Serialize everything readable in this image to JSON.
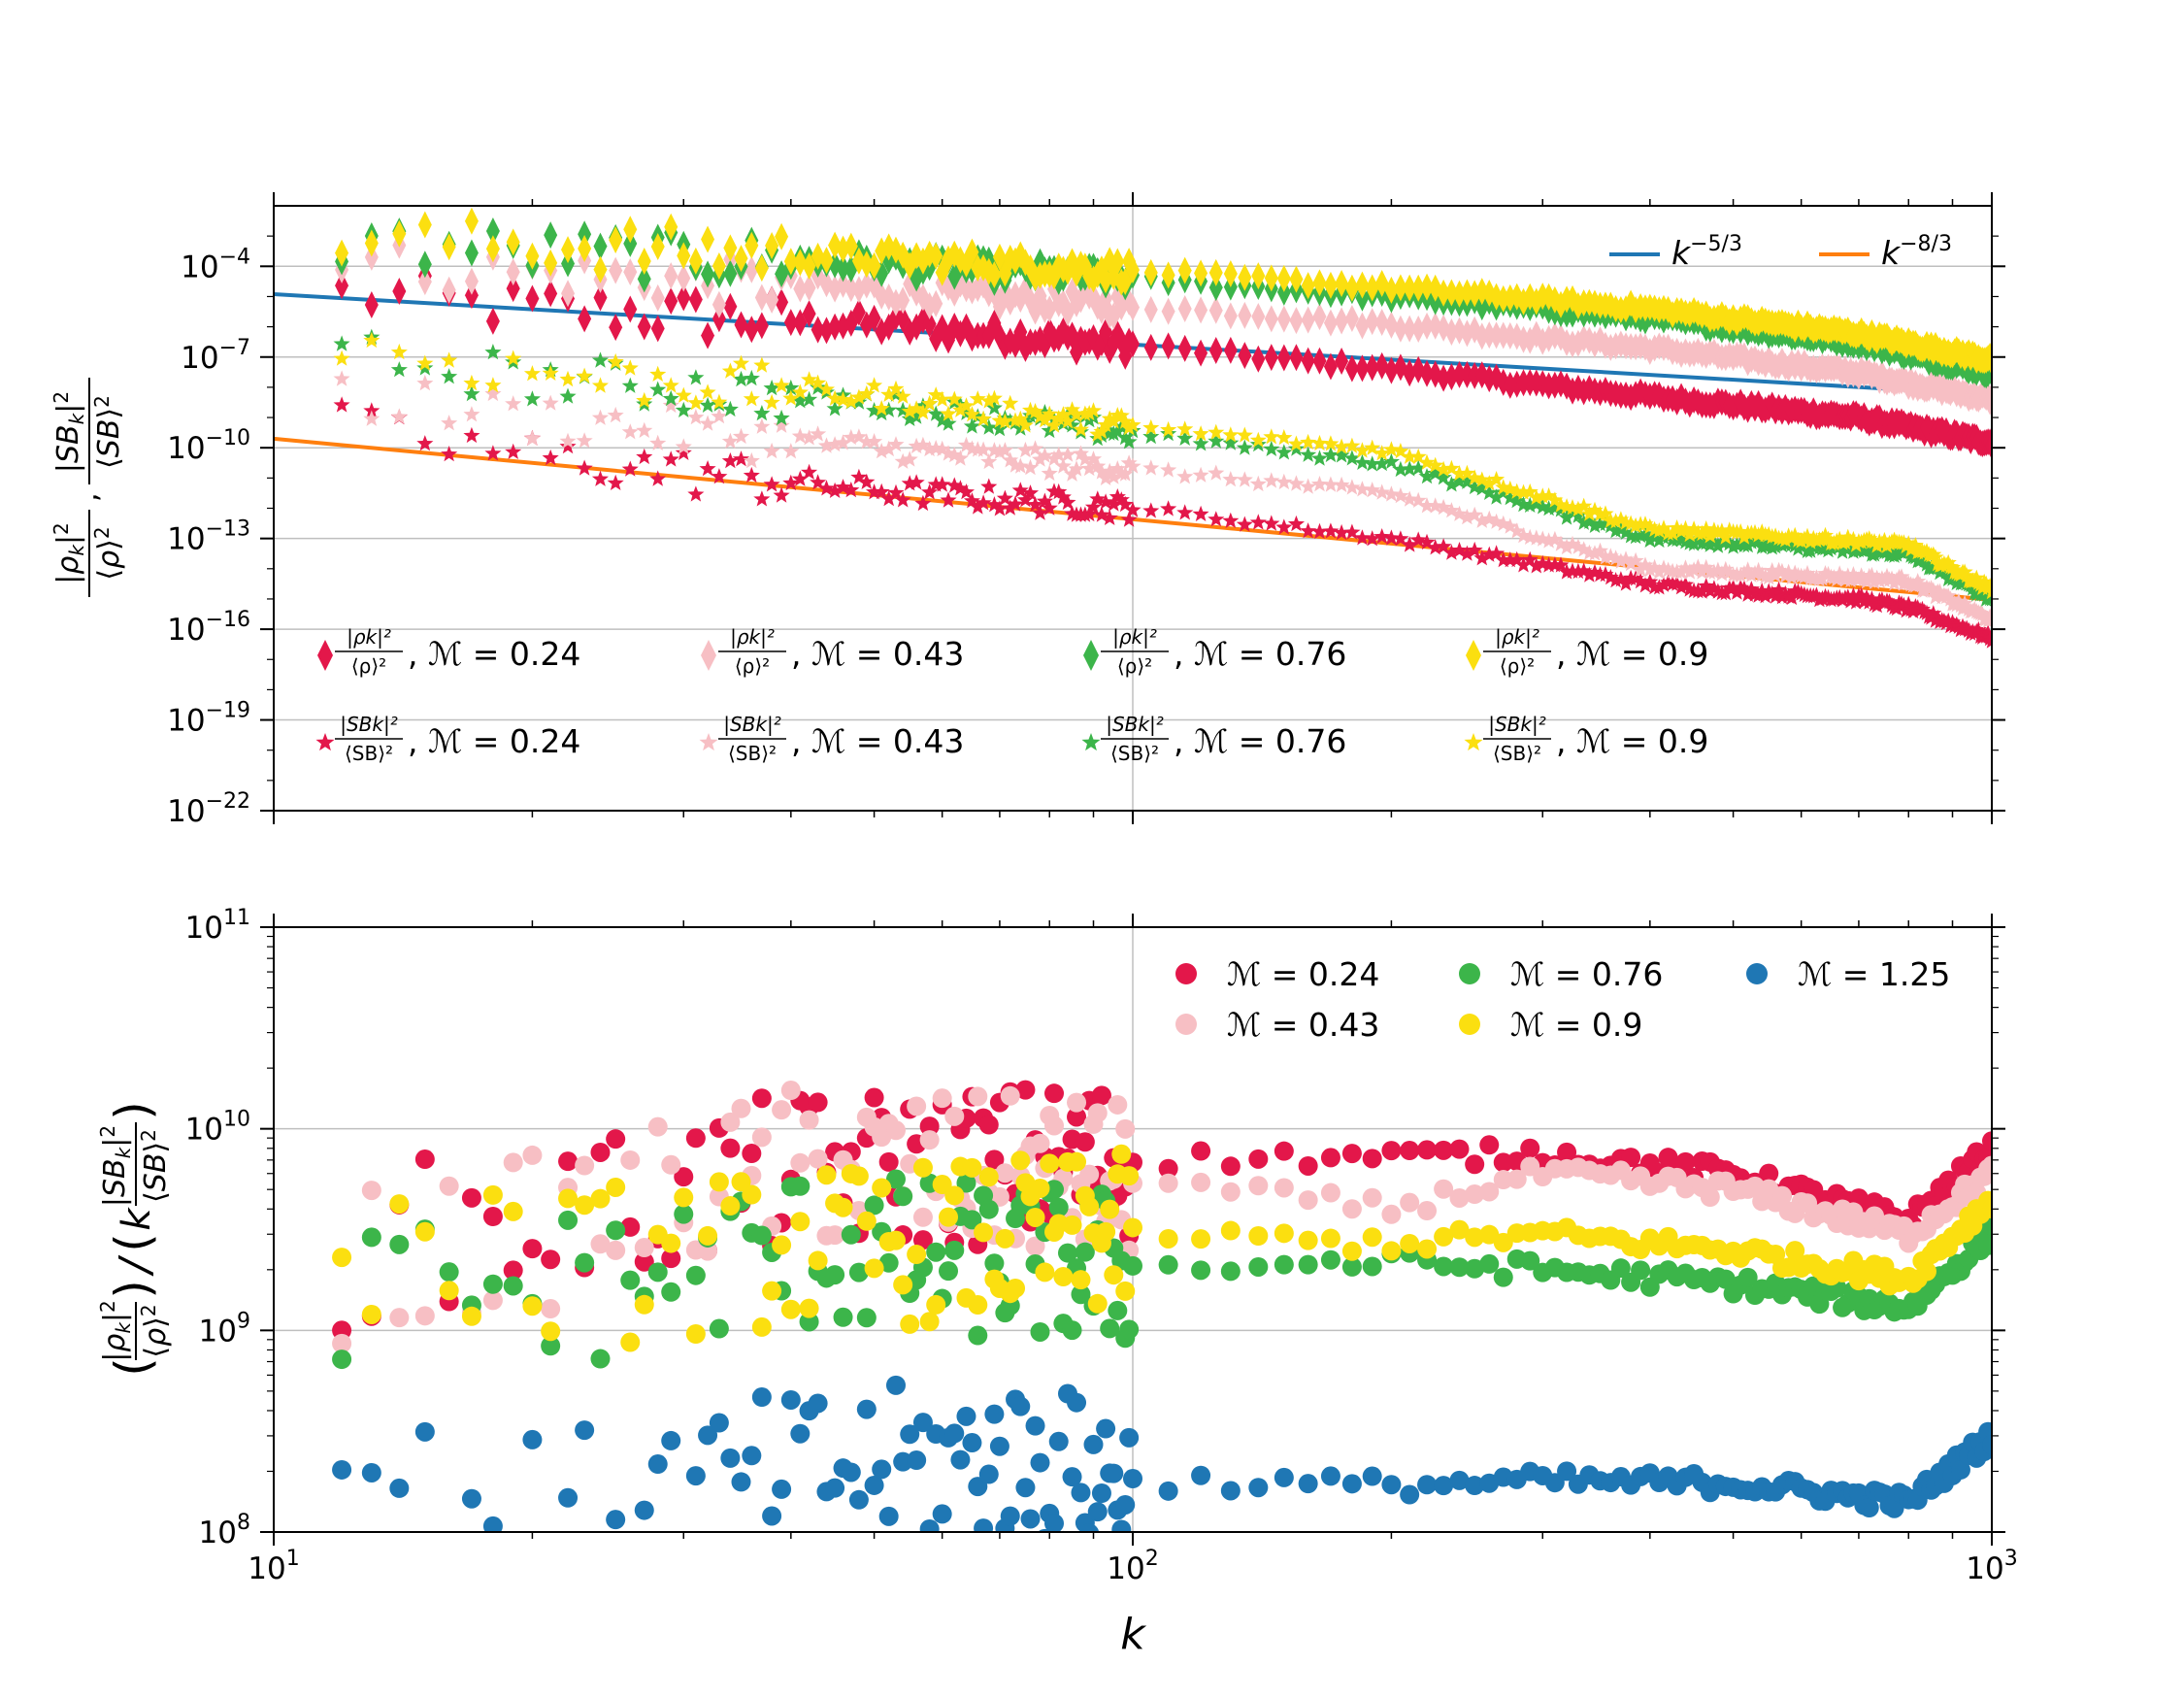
{
  "chart_data": [
    {
      "type": "scatter",
      "xscale": "log",
      "yscale": "log",
      "xlim": [
        10,
        1000
      ],
      "ylim": [
        1e-22,
        0.01
      ],
      "grid": true,
      "xlabel": "",
      "ylabel": "|ρ_k|²/⟨ρ⟩², |SB_k|²/⟨SB⟩²",
      "yticks": [
        "10^-4",
        "10^-7",
        "10^-10",
        "10^-13",
        "10^-16",
        "10^-19",
        "10^-22"
      ],
      "lines": [
        {
          "name": "k^-5/3",
          "color": "#1f77b4",
          "x": [
            10,
            1000
          ],
          "y": [
            1.2e-05,
            5.6e-09
          ]
        },
        {
          "name": "k^-8/3",
          "color": "#ff7f0e",
          "x": [
            10,
            1000
          ],
          "y": [
            2e-10,
            9.3e-16
          ]
        }
      ],
      "line_legend_position": "top-right",
      "series_legend_position": "lower",
      "series": [
        {
          "name": "|ρk|²/⟨ρ⟩², ℳ = 0.24",
          "marker": "diamond",
          "color": "#e3174a",
          "kind": "rho",
          "mach": 0.24,
          "anchors": [
            [
              10,
              2e-05
            ],
            [
              20,
              4e-06
            ],
            [
              50,
              1.2e-06
            ],
            [
              100,
              2.5e-07
            ],
            [
              200,
              4e-08
            ],
            [
              400,
              5e-09
            ],
            [
              700,
              1e-09
            ],
            [
              1000,
              1.5e-10
            ]
          ]
        },
        {
          "name": "|ρk|²/⟨ρ⟩², ℳ = 0.43",
          "marker": "diamond",
          "color": "#f7bfc4",
          "kind": "rho",
          "mach": 0.43,
          "anchors": [
            [
              10,
              0.0002
            ],
            [
              20,
              6e-05
            ],
            [
              50,
              1.6e-05
            ],
            [
              100,
              5e-06
            ],
            [
              200,
              1.2e-06
            ],
            [
              400,
              2e-07
            ],
            [
              700,
              3e-08
            ],
            [
              1000,
              4e-09
            ]
          ]
        },
        {
          "name": "|ρk|²/⟨ρ⟩², ℳ = 0.76",
          "marker": "diamond",
          "color": "#3cb54a",
          "kind": "rho",
          "mach": 0.76,
          "anchors": [
            [
              10,
              0.0008
            ],
            [
              20,
              0.0003
            ],
            [
              50,
              0.00012
            ],
            [
              100,
              4e-05
            ],
            [
              200,
              1e-05
            ],
            [
              400,
              2e-06
            ],
            [
              700,
              3e-07
            ],
            [
              1000,
              3e-08
            ]
          ]
        },
        {
          "name": "|ρk|²/⟨ρ⟩², ℳ = 0.9",
          "marker": "diamond",
          "color": "#fbdf10",
          "kind": "rho",
          "mach": 0.9,
          "anchors": [
            [
              10,
              0.001
            ],
            [
              20,
              0.0005
            ],
            [
              50,
              0.0002
            ],
            [
              100,
              7e-05
            ],
            [
              200,
              2e-05
            ],
            [
              400,
              4e-06
            ],
            [
              700,
              6e-07
            ],
            [
              1000,
              8e-08
            ]
          ]
        },
        {
          "name": "|SBk|²/⟨SB⟩², ℳ = 0.24",
          "marker": "star",
          "color": "#e3174a",
          "kind": "sb",
          "mach": 0.24,
          "anchors": [
            [
              10,
              1e-09
            ],
            [
              20,
              5e-11
            ],
            [
              50,
              4e-12
            ],
            [
              100,
              1e-12
            ],
            [
              200,
              1e-13
            ],
            [
              400,
              3e-15
            ],
            [
              700,
              1e-15
            ],
            [
              800,
              5e-16
            ],
            [
              1000,
              5e-17
            ]
          ]
        },
        {
          "name": "|SBk|²/⟨SB⟩², ℳ = 0.43",
          "marker": "star",
          "color": "#f7bfc4",
          "kind": "sb",
          "mach": 0.43,
          "anchors": [
            [
              10,
              1e-08
            ],
            [
              20,
              1e-09
            ],
            [
              50,
              1e-10
            ],
            [
              100,
              2e-11
            ],
            [
              200,
              3e-12
            ],
            [
              400,
              1e-14
            ],
            [
              700,
              5e-15
            ],
            [
              800,
              4e-15
            ],
            [
              1000,
              2e-16
            ]
          ]
        },
        {
          "name": "|SBk|²/⟨SB⟩², ℳ = 0.76",
          "marker": "star",
          "color": "#3cb54a",
          "kind": "sb",
          "mach": 0.76,
          "anchors": [
            [
              10,
              2e-07
            ],
            [
              20,
              2e-08
            ],
            [
              50,
              3e-09
            ],
            [
              100,
              3e-10
            ],
            [
              200,
              3e-11
            ],
            [
              400,
              1e-13
            ],
            [
              700,
              4e-14
            ],
            [
              800,
              3e-14
            ],
            [
              1000,
              1e-15
            ]
          ]
        },
        {
          "name": "|SBk|²/⟨SB⟩², ℳ = 0.9",
          "marker": "star",
          "color": "#fbdf10",
          "kind": "sb",
          "mach": 0.9,
          "anchors": [
            [
              10,
              5e-07
            ],
            [
              20,
              3e-08
            ],
            [
              50,
              5e-09
            ],
            [
              100,
              5e-10
            ],
            [
              200,
              8e-11
            ],
            [
              400,
              2e-13
            ],
            [
              700,
              8e-14
            ],
            [
              800,
              6e-14
            ],
            [
              1000,
              2e-15
            ]
          ]
        }
      ]
    },
    {
      "type": "scatter",
      "xscale": "log",
      "yscale": "log",
      "xlim": [
        10,
        1000
      ],
      "ylim": [
        100000000.0,
        100000000000.0
      ],
      "grid": true,
      "xlabel": "k",
      "ylabel": "(|ρ_k|²/⟨ρ⟩²)/(k |SB_k|²/⟨SB⟩²)",
      "xticks": [
        "10^1",
        "10^2",
        "10^3"
      ],
      "yticks": [
        "10^11",
        "10^10",
        "10^9",
        "10^8"
      ],
      "legend_position": "top-right",
      "series": [
        {
          "name": "ℳ = 0.24",
          "color": "#e3174a",
          "anchors": [
            [
              12,
              2500000000.0
            ],
            [
              20,
              3500000000.0
            ],
            [
              40,
              6000000000.0
            ],
            [
              100,
              7000000000.0
            ],
            [
              300,
              7500000000.0
            ],
            [
              500,
              6000000000.0
            ],
            [
              800,
              3500000000.0
            ],
            [
              1000,
              8000000000.0
            ]
          ]
        },
        {
          "name": "ℳ = 0.43",
          "color": "#f7bfc4",
          "anchors": [
            [
              12,
              2000000000.0
            ],
            [
              20,
              3000000000.0
            ],
            [
              40,
              6500000000.0
            ],
            [
              100,
              5500000000.0
            ],
            [
              200,
              4000000000.0
            ],
            [
              300,
              6000000000.0
            ],
            [
              500,
              5000000000.0
            ],
            [
              800,
              3000000000.0
            ],
            [
              1000,
              6000000000.0
            ]
          ]
        },
        {
          "name": "ℳ = 0.76",
          "color": "#3cb54a",
          "anchors": [
            [
              12,
              1500000000.0
            ],
            [
              20,
              1500000000.0
            ],
            [
              40,
              2500000000.0
            ],
            [
              100,
              2000000000.0
            ],
            [
              200,
              2200000000.0
            ],
            [
              300,
              2000000000.0
            ],
            [
              500,
              1700000000.0
            ],
            [
              800,
              1300000000.0
            ],
            [
              1000,
              3000000000.0
            ]
          ]
        },
        {
          "name": "ℳ = 0.9",
          "color": "#fbdf10",
          "anchors": [
            [
              12,
              3000000000.0
            ],
            [
              20,
              2000000000.0
            ],
            [
              40,
              2500000000.0
            ],
            [
              100,
              3000000000.0
            ],
            [
              200,
              2700000000.0
            ],
            [
              300,
              3000000000.0
            ],
            [
              500,
              2500000000.0
            ],
            [
              800,
              1800000000.0
            ],
            [
              1000,
              4500000000.0
            ]
          ]
        },
        {
          "name": "ℳ = 1.25",
          "color": "#1f77b4",
          "anchors": [
            [
              12,
              200000000.0
            ],
            [
              20,
              120000000.0
            ],
            [
              40,
              200000000.0
            ],
            [
              70,
              230000000.0
            ],
            [
              100,
              180000000.0
            ],
            [
              200,
              170000000.0
            ],
            [
              300,
              180000000.0
            ],
            [
              500,
              175000000.0
            ],
            [
              800,
              140000000.0
            ],
            [
              1000,
              300000000.0
            ]
          ]
        }
      ]
    }
  ]
}
